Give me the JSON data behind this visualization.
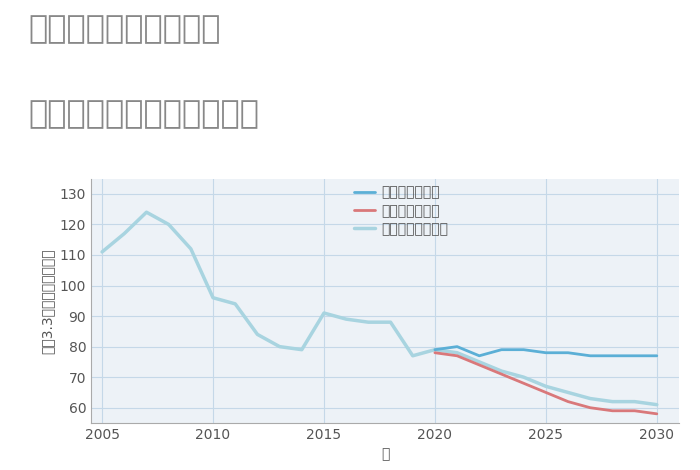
{
  "title_line1": "埼玉県飯能市下名栗の",
  "title_line2": "中古マンションの価格推移",
  "xlabel": "年",
  "ylabel": "平（3.3㎡）単価（万円）",
  "background_color": "#ffffff",
  "plot_background": "#edf2f7",
  "grid_color": "#c5d8e8",
  "ylim": [
    55,
    135
  ],
  "yticks": [
    60,
    70,
    80,
    90,
    100,
    110,
    120,
    130
  ],
  "xlim": [
    2004.5,
    2031.0
  ],
  "xticks": [
    2005,
    2010,
    2015,
    2020,
    2025,
    2030
  ],
  "good_scenario": {
    "label": "グッドシナリオ",
    "color": "#5bafd6",
    "linewidth": 2.0,
    "x": [
      2020,
      2021,
      2022,
      2023,
      2024,
      2025,
      2026,
      2027,
      2028,
      2029,
      2030
    ],
    "y": [
      79,
      80,
      77,
      79,
      79,
      78,
      78,
      77,
      77,
      77,
      77
    ]
  },
  "bad_scenario": {
    "label": "バッドシナリオ",
    "color": "#d9787a",
    "linewidth": 2.0,
    "x": [
      2020,
      2021,
      2022,
      2023,
      2024,
      2025,
      2026,
      2027,
      2028,
      2029,
      2030
    ],
    "y": [
      78,
      77,
      74,
      71,
      68,
      65,
      62,
      60,
      59,
      59,
      58
    ]
  },
  "normal_scenario": {
    "label": "ノーマルシナリオ",
    "color": "#a8d4e0",
    "linewidth": 2.5,
    "x": [
      2005,
      2006,
      2007,
      2008,
      2009,
      2010,
      2011,
      2012,
      2013,
      2014,
      2015,
      2016,
      2017,
      2018,
      2019,
      2020,
      2021,
      2022,
      2023,
      2024,
      2025,
      2026,
      2027,
      2028,
      2029,
      2030
    ],
    "y": [
      111,
      117,
      124,
      120,
      112,
      96,
      94,
      84,
      80,
      79,
      91,
      89,
      88,
      88,
      77,
      79,
      78,
      75,
      72,
      70,
      67,
      65,
      63,
      62,
      62,
      61
    ]
  },
  "title_color": "#888888",
  "title_fontsize": 23,
  "axis_label_fontsize": 10,
  "tick_fontsize": 10,
  "legend_fontsize": 10
}
